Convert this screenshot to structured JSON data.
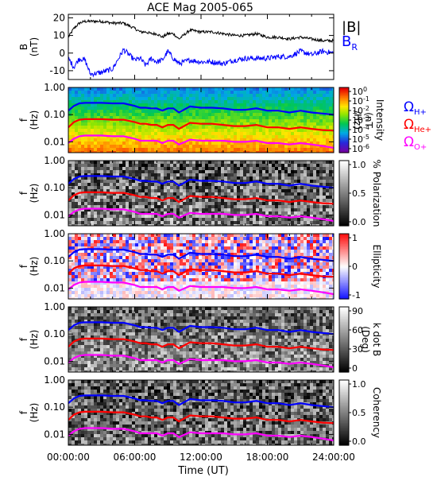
{
  "title": "ACE Mag 2005-065",
  "x_axis": {
    "label": "Time (UT)",
    "ticks": [
      "00:00:00",
      "06:00:00",
      "12:00:00",
      "18:00:00",
      "24:00:00"
    ],
    "range_hours": [
      0,
      24
    ]
  },
  "legends": {
    "field": [
      {
        "label": "|B|",
        "color": "#000000"
      },
      {
        "label": "B",
        "sub": "R",
        "color": "#0000ff"
      }
    ],
    "gyro": [
      {
        "label": "Ω",
        "sub": "H+",
        "color": "#0000ff"
      },
      {
        "label": "Ω",
        "sub": "He+",
        "color": "#ff0000"
      },
      {
        "label": "Ω",
        "sub": "O+",
        "color": "#ff00ff"
      }
    ]
  },
  "colors": {
    "black": "#000000",
    "blue": "#0000ff",
    "red": "#ff0000",
    "magenta": "#ff00ff"
  },
  "chart_data": [
    {
      "type": "line",
      "panel": "field",
      "ylabel": [
        "B",
        "(nT)"
      ],
      "ylim": [
        -15,
        22
      ],
      "yticks": [
        {
          "v": 20,
          "label": "20"
        },
        {
          "v": 10,
          "label": "10"
        },
        {
          "v": 0,
          "label": "0"
        },
        {
          "v": -10,
          "label": "-10"
        }
      ],
      "x": [
        0,
        0.5,
        1,
        1.5,
        2,
        3,
        4,
        5,
        6,
        6.5,
        7,
        7.5,
        8,
        8.5,
        9,
        9.5,
        10,
        11,
        12,
        13,
        14,
        15,
        16,
        17,
        18,
        19,
        20,
        21,
        22,
        23,
        24
      ],
      "series": [
        {
          "name": "|B|",
          "color": "#000000",
          "values": [
            9,
            14,
            17,
            18,
            18,
            18,
            17,
            17,
            14,
            12,
            12,
            11,
            11,
            9,
            11,
            11,
            8,
            13,
            12,
            12,
            11,
            10,
            10,
            11,
            9,
            9,
            8,
            9,
            8,
            7,
            7
          ]
        },
        {
          "name": "B",
          "color": "#0000ff",
          "values": [
            -3,
            -8,
            -3,
            -4,
            -12,
            -11,
            -9,
            2,
            -4,
            -3,
            -7,
            -3,
            -5,
            -4,
            1,
            -3,
            -6,
            -4,
            -5,
            -5,
            -6,
            -4,
            -3,
            -3,
            -3,
            -2,
            -2,
            1,
            -1,
            1,
            0
          ]
        }
      ]
    },
    {
      "type": "heatmap",
      "panel": "intensity",
      "yscale": "log",
      "ylabel": [
        "f",
        "(Hz)"
      ],
      "ylim": [
        0.004,
        1.0
      ],
      "yticks": [
        {
          "v": 1.0,
          "label": "1.00"
        },
        {
          "v": 0.1,
          "label": "0.10"
        },
        {
          "v": 0.01,
          "label": "0.01"
        }
      ],
      "colorbar": {
        "label": [
          "Intensity",
          "(nT",
          "/Hz)"
        ],
        "scale": "rainbow",
        "ticks": [
          "10",
          "10",
          "10",
          "10",
          "10",
          "10",
          "10"
        ],
        "exponents": [
          "0",
          "-1",
          "-2",
          "-3",
          "-4",
          "-5",
          "-6"
        ]
      }
    },
    {
      "type": "heatmap",
      "panel": "polarization",
      "yscale": "log",
      "ylabel": [
        "f",
        "(Hz)"
      ],
      "ylim": [
        0.004,
        1.0
      ],
      "yticks": [
        {
          "v": 1.0,
          "label": "1.00"
        },
        {
          "v": 0.1,
          "label": "0.10"
        },
        {
          "v": 0.01,
          "label": "0.01"
        }
      ],
      "colorbar": {
        "label": [
          "% Polarization"
        ],
        "scale": "gray",
        "ticks": [
          "1.0",
          "0.5",
          "0.0"
        ]
      }
    },
    {
      "type": "heatmap",
      "panel": "ellipticity",
      "yscale": "log",
      "ylabel": [
        "f",
        "(Hz)"
      ],
      "ylim": [
        0.004,
        1.0
      ],
      "yticks": [
        {
          "v": 1.0,
          "label": "1.00"
        },
        {
          "v": 0.1,
          "label": "0.10"
        },
        {
          "v": 0.01,
          "label": "0.01"
        }
      ],
      "colorbar": {
        "label": [
          "Ellipticity"
        ],
        "scale": "bwr",
        "ticks": [
          "1",
          "0",
          "-1"
        ]
      }
    },
    {
      "type": "heatmap",
      "panel": "kdotb",
      "yscale": "log",
      "ylabel": [
        "f",
        "(Hz)"
      ],
      "ylim": [
        0.004,
        1.0
      ],
      "yticks": [
        {
          "v": 1.0,
          "label": "1.00"
        },
        {
          "v": 0.1,
          "label": "0.10"
        },
        {
          "v": 0.01,
          "label": "0.01"
        }
      ],
      "colorbar": {
        "label": [
          "k dot B",
          "(Deg)"
        ],
        "scale": "gray",
        "ticks": [
          "90",
          "60",
          "30",
          "0"
        ]
      }
    },
    {
      "type": "heatmap",
      "panel": "coherency",
      "yscale": "log",
      "ylabel": [
        "f",
        "(Hz)"
      ],
      "ylim": [
        0.004,
        1.0
      ],
      "yticks": [
        {
          "v": 1.0,
          "label": "1.00"
        },
        {
          "v": 0.1,
          "label": "0.10"
        },
        {
          "v": 0.01,
          "label": "0.01"
        }
      ],
      "colorbar": {
        "label": [
          "Coherency"
        ],
        "scale": "gray",
        "ticks": [
          "1.0",
          "0.5",
          "0.0"
        ]
      }
    }
  ],
  "gyrofrequency": {
    "x": [
      0,
      0.5,
      1,
      1.5,
      2,
      3,
      4,
      5,
      6,
      6.5,
      7,
      7.5,
      8,
      8.5,
      9,
      9.5,
      10,
      11,
      12,
      13,
      14,
      15,
      16,
      17,
      18,
      19,
      20,
      21,
      22,
      23,
      24
    ],
    "H+": [
      0.14,
      0.21,
      0.26,
      0.27,
      0.27,
      0.27,
      0.26,
      0.26,
      0.21,
      0.18,
      0.18,
      0.17,
      0.17,
      0.14,
      0.17,
      0.17,
      0.12,
      0.2,
      0.18,
      0.18,
      0.17,
      0.15,
      0.15,
      0.17,
      0.14,
      0.14,
      0.12,
      0.14,
      0.12,
      0.11,
      0.1
    ],
    "He+": [
      0.034,
      0.053,
      0.065,
      0.068,
      0.068,
      0.068,
      0.065,
      0.065,
      0.053,
      0.046,
      0.046,
      0.042,
      0.042,
      0.034,
      0.042,
      0.042,
      0.03,
      0.05,
      0.046,
      0.046,
      0.042,
      0.038,
      0.038,
      0.042,
      0.034,
      0.034,
      0.03,
      0.034,
      0.03,
      0.027,
      0.026
    ],
    "O+": [
      0.009,
      0.013,
      0.016,
      0.017,
      0.017,
      0.017,
      0.016,
      0.016,
      0.013,
      0.011,
      0.011,
      0.011,
      0.011,
      0.009,
      0.011,
      0.011,
      0.008,
      0.012,
      0.011,
      0.011,
      0.011,
      0.01,
      0.01,
      0.011,
      0.009,
      0.009,
      0.008,
      0.009,
      0.008,
      0.007,
      0.006
    ]
  }
}
